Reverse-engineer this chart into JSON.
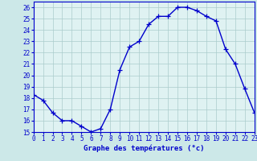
{
  "hours": [
    0,
    1,
    2,
    3,
    4,
    5,
    6,
    7,
    8,
    9,
    10,
    11,
    12,
    13,
    14,
    15,
    16,
    17,
    18,
    19,
    20,
    21,
    22,
    23
  ],
  "temperatures": [
    18.3,
    17.8,
    16.7,
    16.0,
    16.0,
    15.5,
    15.0,
    15.3,
    17.0,
    20.5,
    22.5,
    23.0,
    24.5,
    25.2,
    25.2,
    26.0,
    26.0,
    25.7,
    25.2,
    24.8,
    22.3,
    21.0,
    18.8,
    16.7
  ],
  "line_color": "#0000cc",
  "marker": "+",
  "marker_size": 4,
  "marker_linewidth": 0.9,
  "bg_color": "#cce8e8",
  "plot_bg_color": "#dff2f2",
  "grid_color": "#aacccc",
  "xlabel": "Graphe des températures (°c)",
  "tick_color": "#0000cc",
  "ylim": [
    15,
    26.5
  ],
  "yticks": [
    15,
    16,
    17,
    18,
    19,
    20,
    21,
    22,
    23,
    24,
    25,
    26
  ],
  "xlim": [
    0,
    23
  ],
  "xticks": [
    0,
    1,
    2,
    3,
    4,
    5,
    6,
    7,
    8,
    9,
    10,
    11,
    12,
    13,
    14,
    15,
    16,
    17,
    18,
    19,
    20,
    21,
    22,
    23
  ],
  "tick_fontsize": 5.5,
  "xlabel_fontsize": 6.5,
  "line_width": 1.0
}
